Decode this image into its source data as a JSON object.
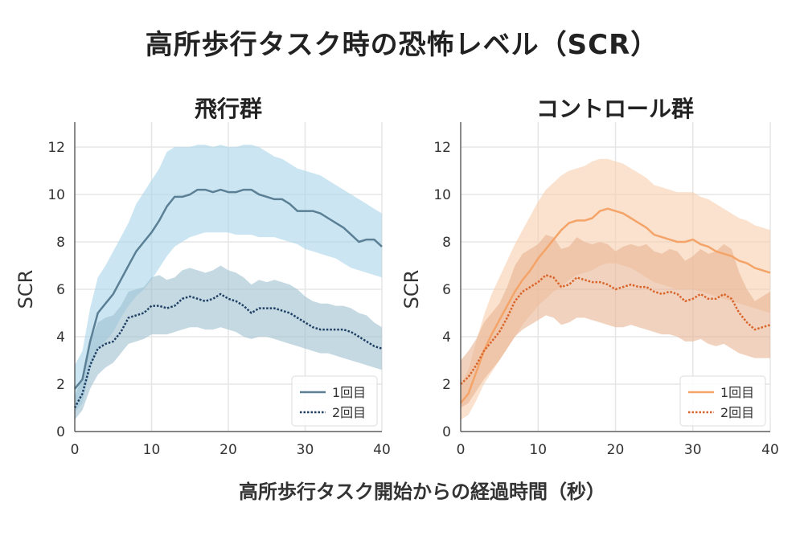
{
  "title": "高所歩行タスク時の恐怖レベル（SCR）",
  "chart_data": [
    {
      "type": "line",
      "title": "飛行群",
      "xlabel": "",
      "ylabel": "SCR",
      "xlim": [
        0,
        40
      ],
      "ylim": [
        0,
        13
      ],
      "xticks": [
        "0",
        "10",
        "20",
        "30",
        "40"
      ],
      "yticks": [
        "0",
        "2",
        "4",
        "6",
        "8",
        "10",
        "12"
      ],
      "grid": true,
      "legend_position": "bottom-right",
      "series": [
        {
          "name": "1回目",
          "style": "solid",
          "color": "#5b7f95",
          "band_color": "#a9d6ea",
          "x": [
            0,
            1,
            2,
            3,
            4,
            5,
            6,
            7,
            8,
            9,
            10,
            11,
            12,
            13,
            14,
            15,
            16,
            17,
            18,
            19,
            20,
            21,
            22,
            23,
            24,
            25,
            26,
            27,
            28,
            29,
            30,
            31,
            32,
            33,
            34,
            35,
            36,
            37,
            38,
            39,
            40
          ],
          "y": [
            1.8,
            2.2,
            3.8,
            5.0,
            5.4,
            5.8,
            6.4,
            7.0,
            7.6,
            8.0,
            8.4,
            8.9,
            9.5,
            9.9,
            9.9,
            10.0,
            10.2,
            10.2,
            10.1,
            10.2,
            10.1,
            10.1,
            10.2,
            10.2,
            10.0,
            9.9,
            9.8,
            9.8,
            9.6,
            9.3,
            9.3,
            9.3,
            9.2,
            9.0,
            8.8,
            8.6,
            8.3,
            8.0,
            8.1,
            8.1,
            7.8
          ],
          "lower": [
            0.8,
            1.2,
            2.6,
            3.5,
            3.8,
            4.2,
            4.8,
            5.3,
            5.7,
            6.0,
            6.4,
            6.9,
            7.4,
            7.8,
            8.0,
            8.2,
            8.3,
            8.4,
            8.4,
            8.4,
            8.4,
            8.3,
            8.3,
            8.3,
            8.2,
            8.2,
            8.2,
            8.1,
            8.0,
            7.9,
            7.7,
            7.6,
            7.5,
            7.4,
            7.3,
            7.1,
            6.9,
            6.8,
            6.7,
            6.6,
            6.5
          ],
          "upper": [
            2.8,
            3.4,
            5.2,
            6.5,
            7.0,
            7.6,
            8.2,
            8.8,
            9.6,
            10.1,
            10.6,
            11.1,
            11.8,
            12.0,
            12.0,
            12.0,
            12.1,
            12.1,
            12.0,
            12.1,
            12.0,
            12.0,
            12.1,
            12.1,
            12.0,
            11.8,
            11.6,
            11.5,
            11.3,
            11.1,
            11.0,
            10.9,
            10.8,
            10.6,
            10.4,
            10.2,
            10.0,
            9.8,
            9.6,
            9.4,
            9.2
          ]
        },
        {
          "name": "2回目",
          "style": "dotted",
          "color": "#1f3f63",
          "band_color": "#9fbfd1",
          "x": [
            0,
            1,
            2,
            3,
            4,
            5,
            6,
            7,
            8,
            9,
            10,
            11,
            12,
            13,
            14,
            15,
            16,
            17,
            18,
            19,
            20,
            21,
            22,
            23,
            24,
            25,
            26,
            27,
            28,
            29,
            30,
            31,
            32,
            33,
            34,
            35,
            36,
            37,
            38,
            39,
            40
          ],
          "y": [
            1.0,
            1.6,
            2.8,
            3.5,
            3.7,
            3.8,
            4.2,
            4.8,
            4.9,
            5.0,
            5.3,
            5.3,
            5.2,
            5.3,
            5.6,
            5.7,
            5.6,
            5.5,
            5.6,
            5.8,
            5.6,
            5.5,
            5.3,
            5.0,
            5.2,
            5.2,
            5.2,
            5.1,
            5.0,
            4.8,
            4.6,
            4.4,
            4.3,
            4.3,
            4.3,
            4.3,
            4.2,
            4.0,
            3.8,
            3.6,
            3.5
          ],
          "lower": [
            0.5,
            0.9,
            1.8,
            2.4,
            2.7,
            2.9,
            3.3,
            3.7,
            3.8,
            3.9,
            4.1,
            4.1,
            4.1,
            4.2,
            4.3,
            4.4,
            4.4,
            4.3,
            4.3,
            4.4,
            4.3,
            4.2,
            4.0,
            3.9,
            4.0,
            4.0,
            3.9,
            3.8,
            3.7,
            3.6,
            3.5,
            3.4,
            3.3,
            3.3,
            3.2,
            3.1,
            3.0,
            2.9,
            2.8,
            2.7,
            2.6
          ],
          "upper": [
            1.5,
            2.3,
            3.8,
            4.6,
            4.8,
            4.9,
            5.3,
            5.9,
            6.0,
            6.1,
            6.5,
            6.6,
            6.4,
            6.5,
            6.8,
            6.9,
            6.8,
            6.7,
            6.8,
            7.0,
            6.8,
            6.7,
            6.5,
            6.2,
            6.4,
            6.3,
            6.4,
            6.3,
            6.2,
            6.0,
            5.7,
            5.5,
            5.4,
            5.4,
            5.3,
            5.3,
            5.2,
            5.0,
            4.9,
            4.6,
            4.4
          ]
        }
      ]
    },
    {
      "type": "line",
      "title": "コントロール群",
      "xlabel": "",
      "ylabel": "SCR",
      "xlim": [
        0,
        40
      ],
      "ylim": [
        0,
        13
      ],
      "xticks": [
        "0",
        "10",
        "20",
        "30",
        "40"
      ],
      "yticks": [
        "0",
        "2",
        "4",
        "6",
        "8",
        "10",
        "12"
      ],
      "grid": true,
      "legend_position": "bottom-right",
      "series": [
        {
          "name": "1回目",
          "style": "solid",
          "color": "#f4a468",
          "band_color": "#f6cfae",
          "x": [
            0,
            1,
            2,
            3,
            4,
            5,
            6,
            7,
            8,
            9,
            10,
            11,
            12,
            13,
            14,
            15,
            16,
            17,
            18,
            19,
            20,
            21,
            22,
            23,
            24,
            25,
            26,
            27,
            28,
            29,
            30,
            31,
            32,
            33,
            34,
            35,
            36,
            37,
            38,
            39,
            40
          ],
          "y": [
            1.2,
            1.6,
            2.5,
            3.4,
            4.1,
            4.7,
            5.3,
            5.9,
            6.4,
            6.8,
            7.3,
            7.7,
            8.1,
            8.5,
            8.8,
            8.9,
            8.9,
            9.0,
            9.3,
            9.4,
            9.3,
            9.2,
            9.0,
            8.8,
            8.6,
            8.3,
            8.2,
            8.1,
            8.0,
            8.0,
            8.1,
            7.9,
            7.8,
            7.6,
            7.5,
            7.4,
            7.2,
            7.1,
            6.9,
            6.8,
            6.7
          ],
          "lower": [
            0.5,
            0.7,
            1.3,
            2.0,
            2.5,
            3.0,
            3.5,
            4.0,
            4.5,
            4.9,
            5.3,
            5.6,
            5.9,
            6.1,
            6.4,
            6.6,
            6.7,
            6.8,
            7.0,
            7.1,
            7.1,
            7.0,
            6.9,
            6.7,
            6.5,
            6.3,
            6.2,
            6.1,
            6.0,
            6.0,
            6.0,
            5.9,
            5.8,
            5.7,
            5.6,
            5.5,
            5.4,
            5.3,
            5.2,
            5.1,
            5.0
          ],
          "upper": [
            2.0,
            2.6,
            3.8,
            4.9,
            5.8,
            6.5,
            7.2,
            7.9,
            8.5,
            9.1,
            9.7,
            10.2,
            10.5,
            10.8,
            11.0,
            11.1,
            11.2,
            11.4,
            11.5,
            11.5,
            11.4,
            11.3,
            11.1,
            10.9,
            10.7,
            10.4,
            10.3,
            10.2,
            10.1,
            10.1,
            10.1,
            9.9,
            9.8,
            9.6,
            9.4,
            9.2,
            9.0,
            8.9,
            8.7,
            8.6,
            8.5
          ]
        },
        {
          "name": "2回目",
          "style": "dotted",
          "color": "#d9652b",
          "band_color": "#e7b493",
          "x": [
            0,
            1,
            2,
            3,
            4,
            5,
            6,
            7,
            8,
            9,
            10,
            11,
            12,
            13,
            14,
            15,
            16,
            17,
            18,
            19,
            20,
            21,
            22,
            23,
            24,
            25,
            26,
            27,
            28,
            29,
            30,
            31,
            32,
            33,
            34,
            35,
            36,
            37,
            38,
            39,
            40
          ],
          "y": [
            2.0,
            2.3,
            2.8,
            3.4,
            3.8,
            4.2,
            4.8,
            5.5,
            5.9,
            6.1,
            6.3,
            6.6,
            6.5,
            6.1,
            6.2,
            6.5,
            6.4,
            6.3,
            6.3,
            6.2,
            6.0,
            6.1,
            6.2,
            6.1,
            6.1,
            5.9,
            5.8,
            5.9,
            5.8,
            5.5,
            5.6,
            5.8,
            5.6,
            5.6,
            5.8,
            5.6,
            5.0,
            4.6,
            4.3,
            4.4,
            4.5
          ],
          "lower": [
            1.0,
            1.2,
            1.7,
            2.2,
            2.6,
            3.0,
            3.5,
            4.0,
            4.3,
            4.5,
            4.7,
            4.9,
            4.8,
            4.5,
            4.6,
            4.8,
            4.8,
            4.7,
            4.6,
            4.5,
            4.4,
            4.4,
            4.5,
            4.4,
            4.3,
            4.2,
            4.1,
            4.1,
            4.0,
            3.8,
            3.8,
            3.9,
            3.7,
            3.6,
            3.7,
            3.5,
            3.3,
            3.2,
            3.1,
            3.1,
            3.1
          ],
          "upper": [
            3.0,
            3.4,
            3.9,
            4.6,
            5.0,
            5.4,
            6.1,
            7.0,
            7.5,
            7.7,
            7.9,
            8.3,
            8.2,
            7.7,
            7.8,
            8.2,
            8.0,
            7.9,
            8.0,
            7.9,
            7.6,
            7.8,
            7.9,
            7.8,
            7.9,
            7.6,
            7.5,
            7.7,
            7.6,
            7.2,
            7.4,
            7.7,
            7.5,
            7.6,
            7.9,
            7.7,
            6.7,
            6.0,
            5.5,
            5.7,
            5.9
          ]
        }
      ]
    }
  ],
  "shared_xlabel": "高所歩行タスク開始からの経過時間（秒）"
}
